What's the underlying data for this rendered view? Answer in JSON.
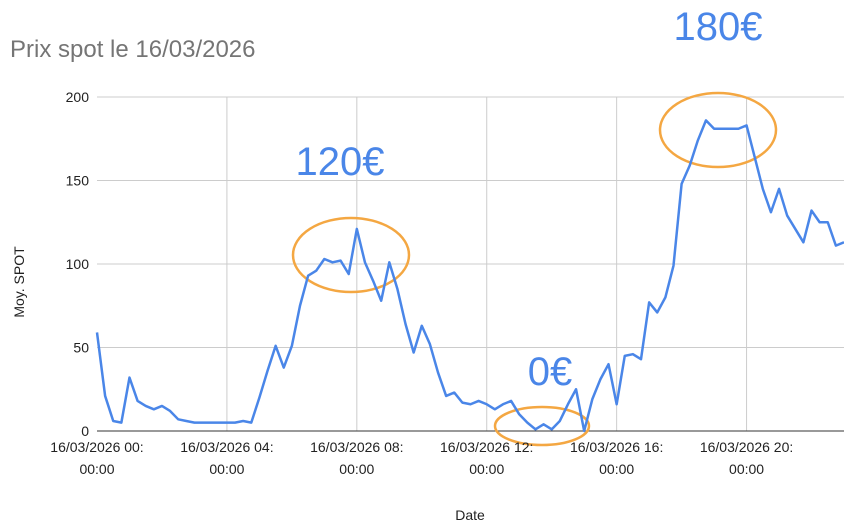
{
  "chart_data": {
    "type": "line",
    "title": "Prix spot le 16/03/2026",
    "x_label": "Date",
    "y_label": "Moy. SPOT",
    "categories": [
      "16/03/2026 00:00:00",
      null,
      null,
      null,
      null,
      null,
      null,
      null,
      null,
      null,
      null,
      null,
      null,
      null,
      null,
      null,
      "16/03/2026 04:00:00",
      null,
      null,
      null,
      null,
      null,
      null,
      null,
      null,
      null,
      null,
      null,
      null,
      null,
      null,
      null,
      "16/03/2026 08:00:00",
      null,
      null,
      null,
      null,
      null,
      null,
      null,
      null,
      null,
      null,
      null,
      null,
      null,
      null,
      null,
      "16/03/2026 12:00:00",
      null,
      null,
      null,
      null,
      null,
      null,
      null,
      null,
      null,
      null,
      null,
      null,
      null,
      null,
      null,
      "16/03/2026 16:00:00",
      null,
      null,
      null,
      null,
      null,
      null,
      null,
      null,
      null,
      null,
      null,
      null,
      null,
      null,
      null,
      "16/03/2026 20:00:00",
      null,
      null,
      null,
      null,
      null,
      null,
      null,
      null,
      null,
      null,
      null,
      null
    ],
    "series": [
      {
        "name": "Moy. SPOT",
        "color": "#4a86e8",
        "values": [
          59,
          21,
          6,
          5,
          32,
          18,
          15,
          13,
          15,
          12,
          7,
          6,
          5,
          5,
          5,
          5,
          5,
          5,
          6,
          5,
          20,
          36,
          51,
          38,
          51,
          75,
          93,
          96,
          103,
          101,
          102,
          94,
          121,
          101,
          90,
          78,
          101,
          85,
          64,
          47,
          63,
          52,
          35,
          21,
          23,
          17,
          16,
          18,
          16,
          13,
          16,
          18,
          10,
          5,
          1,
          4,
          1,
          6,
          16,
          25,
          0,
          19,
          31,
          40,
          16,
          45,
          46,
          43,
          77,
          71,
          80,
          99,
          148,
          159,
          174,
          186,
          181,
          181,
          181,
          181,
          183,
          164,
          145,
          131,
          145,
          129,
          121,
          113,
          132,
          125,
          125,
          111,
          113
        ]
      }
    ],
    "ylim": [
      0,
      200
    ],
    "yticks": [
      0,
      50,
      100,
      150,
      200
    ],
    "grid": true,
    "annotations": [
      "120€",
      "0€",
      "180€"
    ]
  }
}
